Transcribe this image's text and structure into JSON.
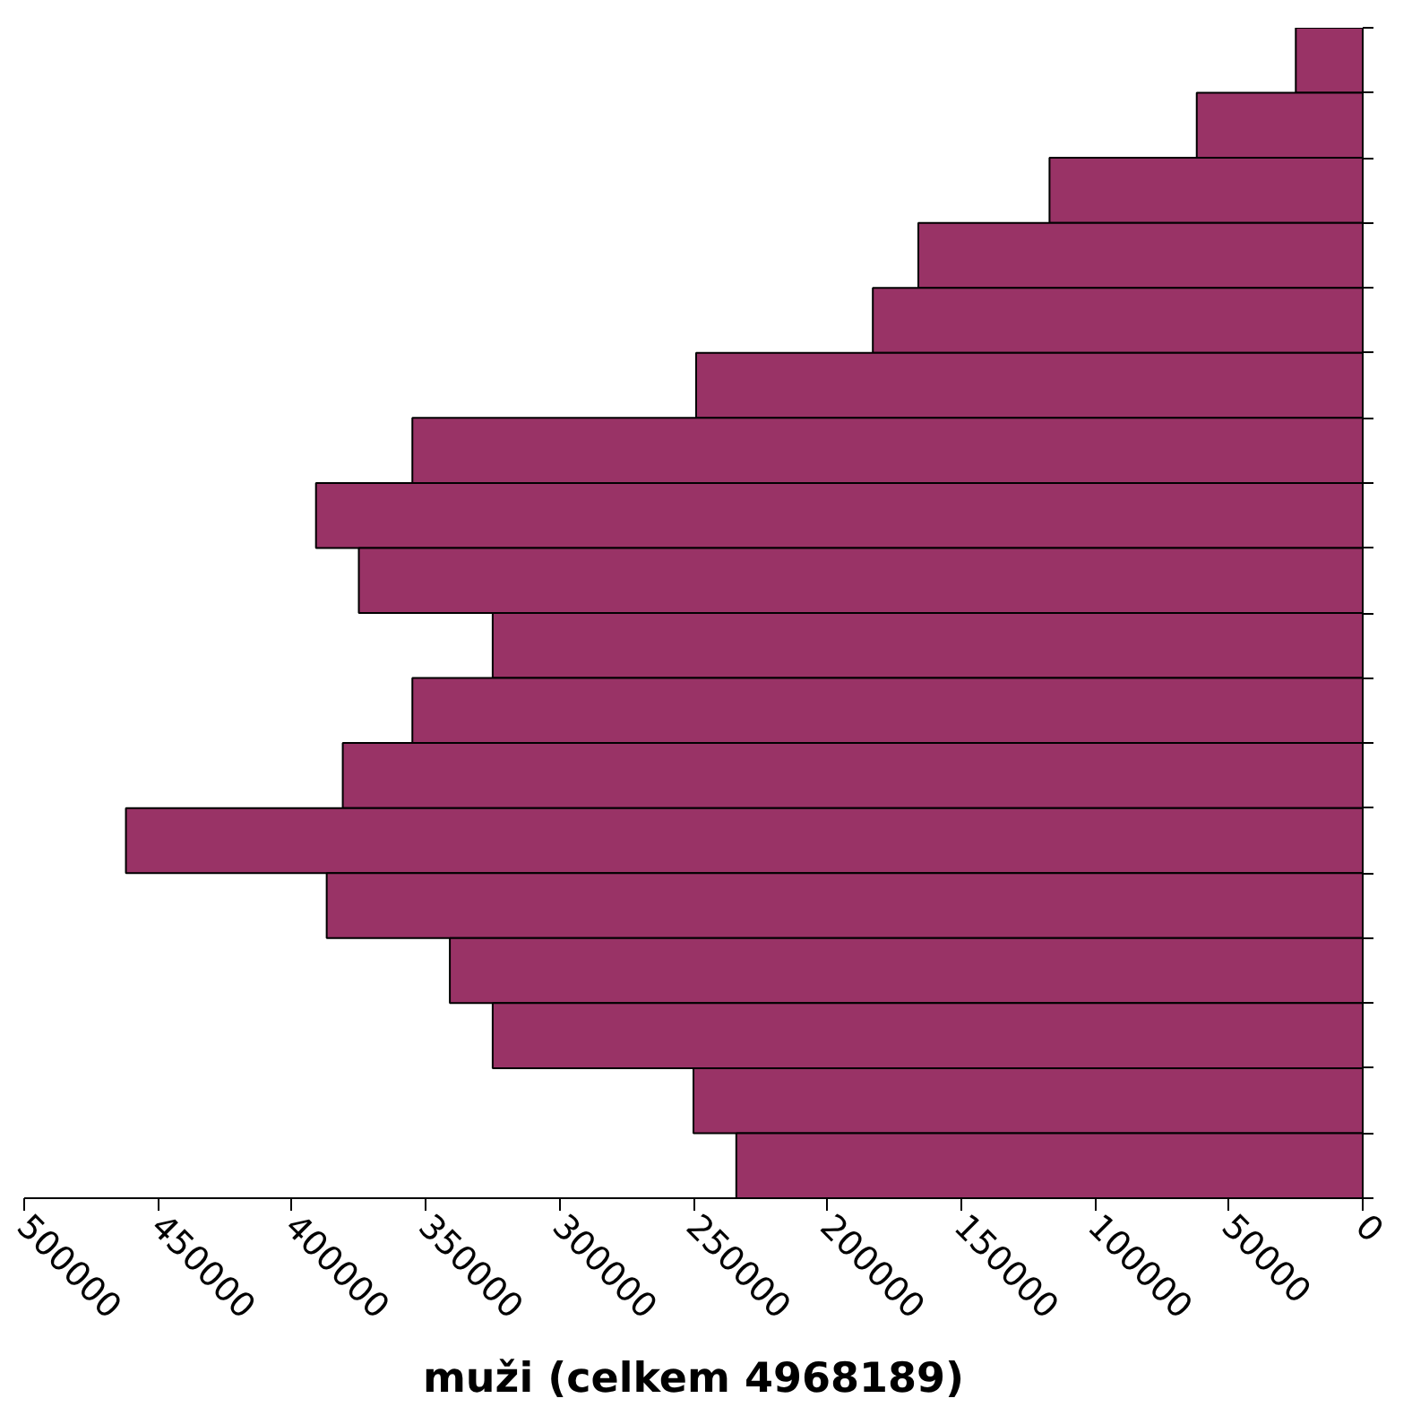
{
  "chart_data": {
    "type": "bar",
    "orientation": "horizontal",
    "xlabel": "muži (celkem 4968189)",
    "categories": [
      null,
      null,
      null,
      null,
      null,
      null,
      null,
      null,
      null,
      null,
      null,
      null,
      null,
      null,
      null,
      null,
      null,
      null
    ],
    "values": [
      25000,
      62000,
      117000,
      166000,
      183000,
      249000,
      355000,
      391000,
      375000,
      325000,
      355000,
      381000,
      462000,
      387000,
      341000,
      325000,
      250000,
      234000
    ],
    "color": "#993366",
    "xlim": [
      500000,
      0
    ],
    "xticks": [
      500000,
      450000,
      400000,
      350000,
      300000,
      250000,
      200000,
      150000,
      100000,
      50000,
      0
    ],
    "tick_labels": "x",
    "grid": false
  }
}
